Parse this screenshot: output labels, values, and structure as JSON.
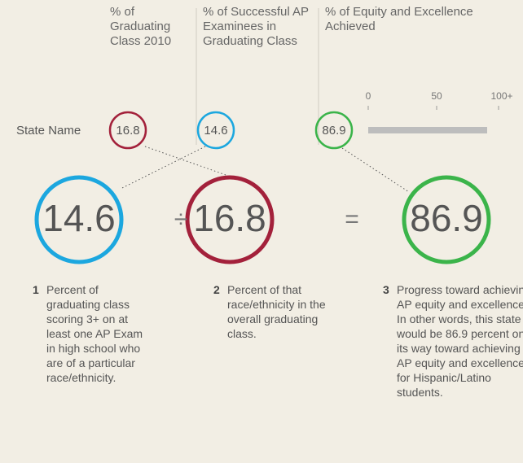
{
  "headers": [
    "% of Graduating Class 2010",
    "% of Successful AP Examinees in Graduating Class",
    "% of Equity and Excellence Achieved"
  ],
  "row_label": "State Name",
  "values": {
    "graduating": 16.8,
    "successful": 14.6,
    "equity": 86.9
  },
  "scale": {
    "ticks": [
      0,
      50,
      {
        "value": 100,
        "label": "100+"
      }
    ],
    "range": [
      0,
      100
    ],
    "bar_color": "#bdbdbd"
  },
  "operators": [
    "÷",
    "="
  ],
  "notes": [
    {
      "number": "1",
      "text": "Percent of graduating class scoring 3+ on at least one AP Exam in high school who are of a particular race/ethnicity."
    },
    {
      "number": "2",
      "text": "Percent of that race/ethnicity in the overall graduating class."
    },
    {
      "number": "3",
      "text": "Progress toward achieving AP equity and excellence. In other words, this state would be 86.9 percent on its way toward achieving AP equity and excellence for Hispanic/Latino students."
    }
  ]
}
